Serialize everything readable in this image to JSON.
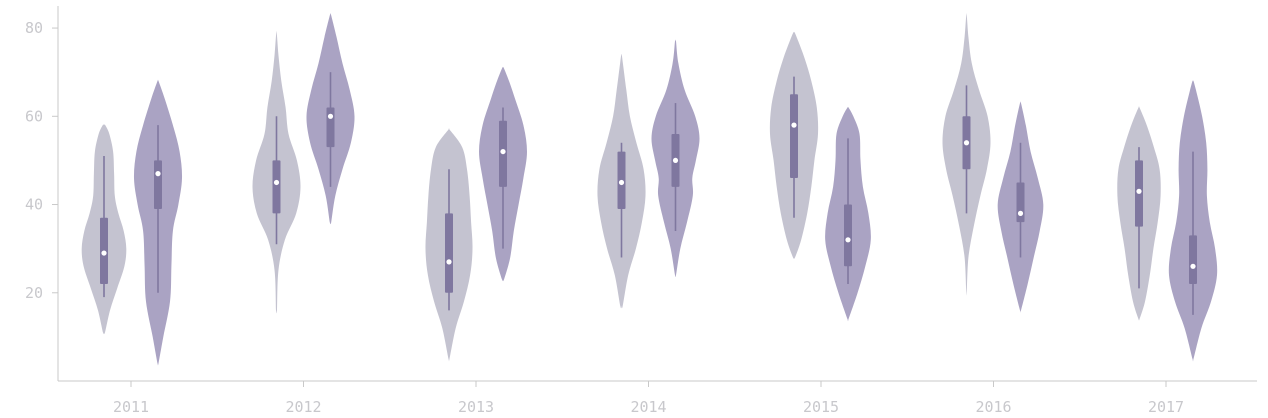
{
  "chart_data": {
    "type": "violin",
    "categories": [
      "2011",
      "2012",
      "2013",
      "2014",
      "2015",
      "2016",
      "2017"
    ],
    "y_ticks": [
      20,
      40,
      60,
      80
    ],
    "ylim": [
      0,
      85
    ],
    "grid": false,
    "legend": "none",
    "colors": {
      "series_a": "#c4c3d0",
      "series_b": "#aaa3c3",
      "box": "#7f779f",
      "median": "#ffffff",
      "axis": "#c9c9c9",
      "tick_text": "#c8c8cc"
    },
    "series": [
      {
        "violins": [
          {
            "category": "2011",
            "min": 11,
            "max": 58,
            "q1": 22,
            "median": 29,
            "q3": 37,
            "whisker_low": 19,
            "whisker_high": 51,
            "profile": [
              [
                11,
                0.04
              ],
              [
                16,
                0.25
              ],
              [
                21,
                0.55
              ],
              [
                26,
                0.85
              ],
              [
                30,
                0.93
              ],
              [
                34,
                0.82
              ],
              [
                38,
                0.6
              ],
              [
                42,
                0.45
              ],
              [
                47,
                0.42
              ],
              [
                52,
                0.38
              ],
              [
                56,
                0.22
              ],
              [
                58,
                0.05
              ]
            ]
          },
          {
            "category": "2012",
            "min": 16,
            "max": 79,
            "q1": 38,
            "median": 45,
            "q3": 50,
            "whisker_low": 31,
            "whisker_high": 60,
            "profile": [
              [
                16,
                0.02
              ],
              [
                25,
                0.08
              ],
              [
                32,
                0.35
              ],
              [
                38,
                0.82
              ],
              [
                44,
                1.0
              ],
              [
                50,
                0.85
              ],
              [
                56,
                0.5
              ],
              [
                62,
                0.38
              ],
              [
                68,
                0.2
              ],
              [
                74,
                0.08
              ],
              [
                79,
                0.01
              ]
            ]
          },
          {
            "category": "2013",
            "min": 5,
            "max": 57,
            "q1": 20,
            "median": 27,
            "q3": 38,
            "whisker_low": 16,
            "whisker_high": 48,
            "profile": [
              [
                5,
                0.02
              ],
              [
                12,
                0.28
              ],
              [
                18,
                0.62
              ],
              [
                24,
                0.88
              ],
              [
                30,
                0.98
              ],
              [
                36,
                0.92
              ],
              [
                42,
                0.86
              ],
              [
                48,
                0.75
              ],
              [
                53,
                0.55
              ],
              [
                57,
                0.02
              ]
            ]
          },
          {
            "category": "2014",
            "min": 17,
            "max": 74,
            "q1": 39,
            "median": 45,
            "q3": 52,
            "whisker_low": 28,
            "whisker_high": 54,
            "profile": [
              [
                17,
                0.05
              ],
              [
                24,
                0.28
              ],
              [
                30,
                0.6
              ],
              [
                36,
                0.85
              ],
              [
                42,
                1.0
              ],
              [
                48,
                0.92
              ],
              [
                54,
                0.62
              ],
              [
                60,
                0.35
              ],
              [
                66,
                0.2
              ],
              [
                72,
                0.06
              ],
              [
                74,
                0.01
              ]
            ]
          },
          {
            "category": "2015",
            "min": 28,
            "max": 79,
            "q1": 46,
            "median": 58,
            "q3": 65,
            "whisker_low": 37,
            "whisker_high": 69,
            "profile": [
              [
                28,
                0.04
              ],
              [
                32,
                0.3
              ],
              [
                38,
                0.55
              ],
              [
                44,
                0.72
              ],
              [
                50,
                0.85
              ],
              [
                56,
                1.0
              ],
              [
                62,
                0.95
              ],
              [
                68,
                0.72
              ],
              [
                73,
                0.45
              ],
              [
                77,
                0.18
              ],
              [
                79,
                0.03
              ]
            ]
          },
          {
            "category": "2016",
            "min": 20,
            "max": 83,
            "q1": 48,
            "median": 54,
            "q3": 60,
            "whisker_low": 38,
            "whisker_high": 67,
            "profile": [
              [
                20,
                0.01
              ],
              [
                28,
                0.08
              ],
              [
                35,
                0.3
              ],
              [
                42,
                0.58
              ],
              [
                48,
                0.85
              ],
              [
                54,
                1.0
              ],
              [
                60,
                0.88
              ],
              [
                66,
                0.52
              ],
              [
                72,
                0.22
              ],
              [
                78,
                0.08
              ],
              [
                83,
                0.01
              ]
            ]
          },
          {
            "category": "2017",
            "min": 14,
            "max": 62,
            "q1": 35,
            "median": 43,
            "q3": 50,
            "whisker_low": 21,
            "whisker_high": 53,
            "profile": [
              [
                14,
                0.02
              ],
              [
                18,
                0.25
              ],
              [
                24,
                0.45
              ],
              [
                30,
                0.6
              ],
              [
                36,
                0.78
              ],
              [
                42,
                0.9
              ],
              [
                48,
                0.86
              ],
              [
                53,
                0.62
              ],
              [
                58,
                0.32
              ],
              [
                62,
                0.02
              ]
            ]
          }
        ]
      },
      {
        "violins": [
          {
            "category": "2011",
            "min": 4,
            "max": 68,
            "q1": 39,
            "median": 47,
            "q3": 50,
            "whisker_low": 20,
            "whisker_high": 58,
            "profile": [
              [
                4,
                0.02
              ],
              [
                10,
                0.22
              ],
              [
                18,
                0.5
              ],
              [
                26,
                0.56
              ],
              [
                34,
                0.62
              ],
              [
                40,
                0.85
              ],
              [
                46,
                1.0
              ],
              [
                52,
                0.9
              ],
              [
                58,
                0.62
              ],
              [
                64,
                0.28
              ],
              [
                68,
                0.02
              ]
            ]
          },
          {
            "category": "2012",
            "min": 36,
            "max": 83,
            "q1": 53,
            "median": 60,
            "q3": 62,
            "whisker_low": 44,
            "whisker_high": 70,
            "profile": [
              [
                36,
                0.03
              ],
              [
                42,
                0.2
              ],
              [
                48,
                0.5
              ],
              [
                54,
                0.85
              ],
              [
                60,
                1.0
              ],
              [
                66,
                0.8
              ],
              [
                72,
                0.5
              ],
              [
                78,
                0.25
              ],
              [
                83,
                0.02
              ]
            ]
          },
          {
            "category": "2013",
            "min": 23,
            "max": 71,
            "q1": 44,
            "median": 52,
            "q3": 59,
            "whisker_low": 30,
            "whisker_high": 62,
            "profile": [
              [
                23,
                0.04
              ],
              [
                28,
                0.3
              ],
              [
                34,
                0.45
              ],
              [
                40,
                0.65
              ],
              [
                46,
                0.85
              ],
              [
                52,
                1.0
              ],
              [
                58,
                0.85
              ],
              [
                64,
                0.5
              ],
              [
                68,
                0.25
              ],
              [
                71,
                0.03
              ]
            ]
          },
          {
            "category": "2014",
            "min": 24,
            "max": 77,
            "q1": 44,
            "median": 50,
            "q3": 56,
            "whisker_low": 34,
            "whisker_high": 63,
            "profile": [
              [
                24,
                0.02
              ],
              [
                30,
                0.2
              ],
              [
                36,
                0.48
              ],
              [
                42,
                0.72
              ],
              [
                46,
                0.7
              ],
              [
                50,
                0.85
              ],
              [
                55,
                1.0
              ],
              [
                60,
                0.82
              ],
              [
                66,
                0.38
              ],
              [
                72,
                0.12
              ],
              [
                77,
                0.02
              ]
            ]
          },
          {
            "category": "2015",
            "min": 14,
            "max": 62,
            "q1": 26,
            "median": 32,
            "q3": 40,
            "whisker_low": 22,
            "whisker_high": 55,
            "profile": [
              [
                14,
                0.02
              ],
              [
                20,
                0.4
              ],
              [
                26,
                0.72
              ],
              [
                32,
                0.95
              ],
              [
                38,
                0.85
              ],
              [
                44,
                0.62
              ],
              [
                50,
                0.52
              ],
              [
                56,
                0.48
              ],
              [
                60,
                0.22
              ],
              [
                62,
                0.02
              ]
            ]
          },
          {
            "category": "2016",
            "min": 16,
            "max": 63,
            "q1": 36,
            "median": 38,
            "q3": 45,
            "whisker_low": 28,
            "whisker_high": 54,
            "profile": [
              [
                16,
                0.02
              ],
              [
                22,
                0.3
              ],
              [
                28,
                0.55
              ],
              [
                34,
                0.8
              ],
              [
                40,
                0.95
              ],
              [
                46,
                0.72
              ],
              [
                52,
                0.42
              ],
              [
                58,
                0.22
              ],
              [
                63,
                0.02
              ]
            ]
          },
          {
            "category": "2017",
            "min": 5,
            "max": 68,
            "q1": 22,
            "median": 26,
            "q3": 33,
            "whisker_low": 15,
            "whisker_high": 52,
            "profile": [
              [
                5,
                0.02
              ],
              [
                12,
                0.35
              ],
              [
                18,
                0.75
              ],
              [
                24,
                1.0
              ],
              [
                30,
                0.92
              ],
              [
                36,
                0.7
              ],
              [
                42,
                0.58
              ],
              [
                48,
                0.6
              ],
              [
                54,
                0.55
              ],
              [
                60,
                0.38
              ],
              [
                66,
                0.12
              ],
              [
                68,
                0.02
              ]
            ]
          }
        ]
      }
    ]
  }
}
